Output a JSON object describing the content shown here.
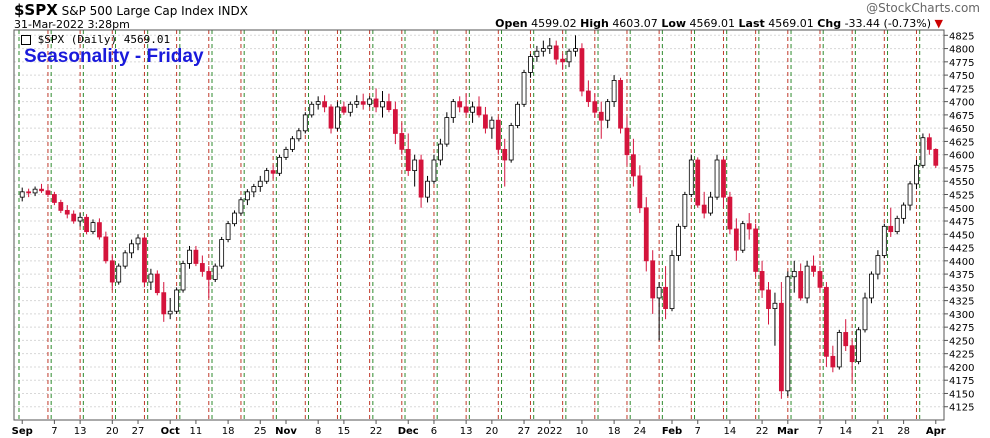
{
  "header": {
    "symbol": "$SPX",
    "name": "S&P 500 Large Cap Index",
    "exchange": "INDX",
    "date": "31-Mar-2022 3:28pm",
    "brand": "@StockCharts.com",
    "open_label": "Open",
    "open": "4599.02",
    "high_label": "High",
    "high": "4603.07",
    "low_label": "Low",
    "low": "4569.01",
    "last_label": "Last",
    "last": "4569.01",
    "chg_label": "Chg",
    "chg": "-33.44 (-0.73%)",
    "legend_text": "$SPX (Daily) 4569.01"
  },
  "chart_data": {
    "type": "candlestick",
    "title": "Seasonality - Friday",
    "ylim": [
      4100,
      4835
    ],
    "y_ticks": [
      4125,
      4150,
      4175,
      4200,
      4225,
      4250,
      4275,
      4300,
      4325,
      4350,
      4375,
      4400,
      4425,
      4450,
      4475,
      4500,
      4525,
      4550,
      4575,
      4600,
      4625,
      4650,
      4675,
      4700,
      4725,
      4750,
      4775,
      4800,
      4825
    ],
    "x_labels": [
      "Sep",
      "7",
      "13",
      "20",
      "27",
      "Oct",
      "11",
      "18",
      "25",
      "Nov",
      "8",
      "15",
      "22",
      "Dec",
      "6",
      "13",
      "20",
      "27",
      "2022",
      "10",
      "18",
      "24",
      "Feb",
      "7",
      "14",
      "22",
      "Mar",
      "7",
      "14",
      "21",
      "28",
      "Apr"
    ],
    "up_color": "#ffffff",
    "down_color": "#d4143c",
    "friday_line_color": "#c0392b",
    "monday_line_color": "#2e8b2e",
    "candles": [
      [
        4520,
        4538,
        4512,
        4530
      ],
      [
        4530,
        4536,
        4520,
        4528
      ],
      [
        4528,
        4540,
        4522,
        4535
      ],
      [
        4535,
        4545,
        4528,
        4532
      ],
      [
        4532,
        4540,
        4520,
        4525
      ],
      [
        4525,
        4530,
        4505,
        4510
      ],
      [
        4510,
        4515,
        4490,
        4495
      ],
      [
        4495,
        4505,
        4480,
        4488
      ],
      [
        4488,
        4495,
        4470,
        4475
      ],
      [
        4475,
        4490,
        4465,
        4482
      ],
      [
        4482,
        4488,
        4450,
        4455
      ],
      [
        4455,
        4478,
        4450,
        4472
      ],
      [
        4472,
        4480,
        4440,
        4445
      ],
      [
        4445,
        4455,
        4395,
        4400
      ],
      [
        4400,
        4410,
        4345,
        4360
      ],
      [
        4360,
        4395,
        4355,
        4390
      ],
      [
        4390,
        4420,
        4385,
        4415
      ],
      [
        4415,
        4440,
        4405,
        4432
      ],
      [
        4432,
        4450,
        4420,
        4443
      ],
      [
        4443,
        4445,
        4350,
        4360
      ],
      [
        4360,
        4385,
        4345,
        4375
      ],
      [
        4375,
        4382,
        4335,
        4340
      ],
      [
        4340,
        4360,
        4285,
        4300
      ],
      [
        4300,
        4330,
        4290,
        4305
      ],
      [
        4305,
        4350,
        4300,
        4345
      ],
      [
        4345,
        4400,
        4340,
        4395
      ],
      [
        4395,
        4428,
        4385,
        4420
      ],
      [
        4420,
        4428,
        4390,
        4395
      ],
      [
        4395,
        4410,
        4370,
        4380
      ],
      [
        4380,
        4390,
        4330,
        4365
      ],
      [
        4365,
        4395,
        4360,
        4390
      ],
      [
        4390,
        4445,
        4385,
        4440
      ],
      [
        4440,
        4475,
        4435,
        4470
      ],
      [
        4470,
        4495,
        4465,
        4490
      ],
      [
        4490,
        4520,
        4485,
        4515
      ],
      [
        4515,
        4535,
        4505,
        4530
      ],
      [
        4530,
        4545,
        4520,
        4540
      ],
      [
        4540,
        4560,
        4530,
        4550
      ],
      [
        4550,
        4575,
        4545,
        4570
      ],
      [
        4570,
        4580,
        4555,
        4565
      ],
      [
        4565,
        4600,
        4560,
        4595
      ],
      [
        4595,
        4615,
        4590,
        4610
      ],
      [
        4610,
        4635,
        4605,
        4630
      ],
      [
        4630,
        4650,
        4625,
        4645
      ],
      [
        4645,
        4680,
        4640,
        4675
      ],
      [
        4675,
        4700,
        4670,
        4695
      ],
      [
        4695,
        4710,
        4685,
        4700
      ],
      [
        4700,
        4712,
        4680,
        4690
      ],
      [
        4690,
        4695,
        4640,
        4650
      ],
      [
        4650,
        4700,
        4645,
        4690
      ],
      [
        4690,
        4700,
        4675,
        4680
      ],
      [
        4680,
        4700,
        4672,
        4695
      ],
      [
        4695,
        4712,
        4688,
        4700
      ],
      [
        4700,
        4715,
        4685,
        4695
      ],
      [
        4695,
        4710,
        4690,
        4705
      ],
      [
        4705,
        4725,
        4680,
        4690
      ],
      [
        4690,
        4720,
        4670,
        4700
      ],
      [
        4700,
        4715,
        4680,
        4685
      ],
      [
        4685,
        4700,
        4620,
        4640
      ],
      [
        4640,
        4660,
        4600,
        4610
      ],
      [
        4610,
        4640,
        4560,
        4570
      ],
      [
        4570,
        4600,
        4540,
        4590
      ],
      [
        4590,
        4600,
        4500,
        4520
      ],
      [
        4520,
        4560,
        4510,
        4550
      ],
      [
        4550,
        4600,
        4545,
        4590
      ],
      [
        4590,
        4630,
        4580,
        4620
      ],
      [
        4620,
        4680,
        4615,
        4670
      ],
      [
        4670,
        4705,
        4660,
        4700
      ],
      [
        4700,
        4710,
        4680,
        4690
      ],
      [
        4690,
        4715,
        4675,
        4680
      ],
      [
        4680,
        4700,
        4660,
        4690
      ],
      [
        4690,
        4710,
        4670,
        4675
      ],
      [
        4675,
        4690,
        4640,
        4650
      ],
      [
        4650,
        4672,
        4630,
        4665
      ],
      [
        4665,
        4670,
        4600,
        4610
      ],
      [
        4610,
        4630,
        4540,
        4590
      ],
      [
        4590,
        4660,
        4585,
        4655
      ],
      [
        4655,
        4700,
        4650,
        4695
      ],
      [
        4695,
        4760,
        4690,
        4755
      ],
      [
        4755,
        4790,
        4745,
        4785
      ],
      [
        4785,
        4805,
        4775,
        4795
      ],
      [
        4795,
        4815,
        4785,
        4800
      ],
      [
        4800,
        4820,
        4790,
        4805
      ],
      [
        4805,
        4815,
        4770,
        4780
      ],
      [
        4780,
        4790,
        4760,
        4775
      ],
      [
        4775,
        4800,
        4765,
        4795
      ],
      [
        4795,
        4825,
        4785,
        4800
      ],
      [
        4800,
        4810,
        4710,
        4720
      ],
      [
        4720,
        4740,
        4690,
        4700
      ],
      [
        4700,
        4715,
        4670,
        4680
      ],
      [
        4680,
        4700,
        4630,
        4665
      ],
      [
        4665,
        4705,
        4650,
        4700
      ],
      [
        4700,
        4750,
        4690,
        4740
      ],
      [
        4740,
        4745,
        4640,
        4650
      ],
      [
        4650,
        4670,
        4580,
        4600
      ],
      [
        4600,
        4630,
        4540,
        4560
      ],
      [
        4560,
        4580,
        4490,
        4500
      ],
      [
        4500,
        4520,
        4380,
        4400
      ],
      [
        4400,
        4420,
        4300,
        4330
      ],
      [
        4330,
        4360,
        4250,
        4350
      ],
      [
        4350,
        4390,
        4290,
        4310
      ],
      [
        4310,
        4420,
        4305,
        4410
      ],
      [
        4410,
        4470,
        4400,
        4465
      ],
      [
        4465,
        4530,
        4460,
        4525
      ],
      [
        4525,
        4600,
        4520,
        4590
      ],
      [
        4590,
        4595,
        4500,
        4505
      ],
      [
        4505,
        4530,
        4480,
        4490
      ],
      [
        4490,
        4530,
        4485,
        4520
      ],
      [
        4520,
        4600,
        4515,
        4590
      ],
      [
        4590,
        4595,
        4500,
        4520
      ],
      [
        4520,
        4530,
        4450,
        4460
      ],
      [
        4460,
        4480,
        4400,
        4420
      ],
      [
        4420,
        4475,
        4415,
        4470
      ],
      [
        4470,
        4490,
        4440,
        4460
      ],
      [
        4460,
        4470,
        4370,
        4380
      ],
      [
        4380,
        4400,
        4330,
        4345
      ],
      [
        4345,
        4360,
        4280,
        4310
      ],
      [
        4310,
        4340,
        4240,
        4320
      ],
      [
        4320,
        4360,
        4140,
        4155
      ],
      [
        4155,
        4380,
        4145,
        4370
      ],
      [
        4370,
        4400,
        4340,
        4380
      ],
      [
        4380,
        4395,
        4325,
        4330
      ],
      [
        4330,
        4400,
        4320,
        4390
      ],
      [
        4390,
        4410,
        4370,
        4380
      ],
      [
        4380,
        4390,
        4340,
        4350
      ],
      [
        4350,
        4360,
        4200,
        4220
      ],
      [
        4220,
        4240,
        4190,
        4200
      ],
      [
        4200,
        4270,
        4195,
        4265
      ],
      [
        4265,
        4290,
        4230,
        4240
      ],
      [
        4240,
        4250,
        4175,
        4210
      ],
      [
        4210,
        4275,
        4205,
        4270
      ],
      [
        4270,
        4340,
        4265,
        4330
      ],
      [
        4330,
        4380,
        4320,
        4375
      ],
      [
        4375,
        4420,
        4365,
        4410
      ],
      [
        4410,
        4470,
        4405,
        4465
      ],
      [
        4465,
        4500,
        4445,
        4455
      ],
      [
        4455,
        4485,
        4450,
        4480
      ],
      [
        4480,
        4510,
        4470,
        4505
      ],
      [
        4505,
        4550,
        4495,
        4545
      ],
      [
        4545,
        4590,
        4535,
        4580
      ],
      [
        4580,
        4640,
        4575,
        4632
      ],
      [
        4632,
        4640,
        4600,
        4610
      ],
      [
        4610,
        4612,
        4575,
        4580
      ]
    ]
  }
}
